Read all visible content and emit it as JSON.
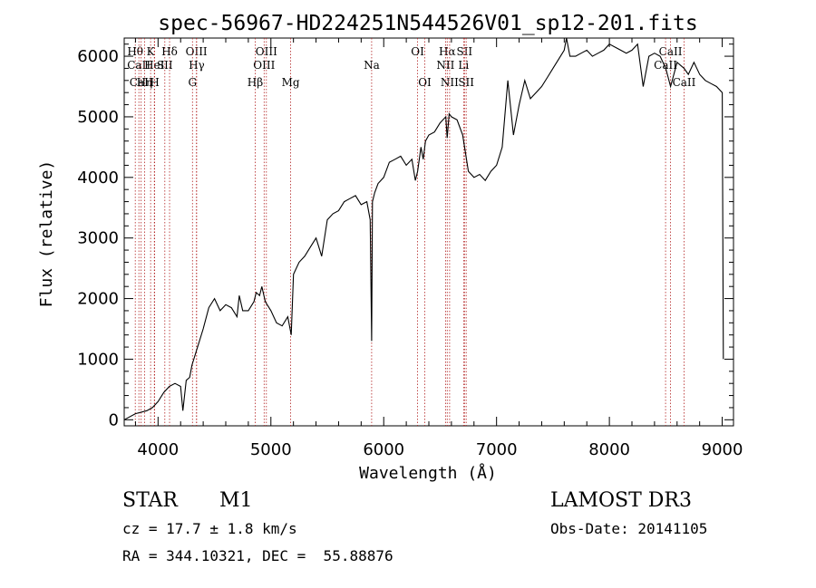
{
  "chart_data": {
    "type": "line",
    "title": "spec-56967-HD224251N544526V01_sp12-201.fits",
    "xlabel": "Wavelength (Å)",
    "ylabel": "Flux (relative)",
    "xlim": [
      3700,
      9100
    ],
    "ylim": [
      -100,
      6300
    ],
    "xticks": [
      4000,
      5000,
      6000,
      7000,
      8000,
      9000
    ],
    "yticks": [
      0,
      1000,
      2000,
      3000,
      4000,
      5000,
      6000
    ],
    "grid": false,
    "series": [
      {
        "x": [
          3700,
          3800,
          3900,
          3950,
          4000,
          4050,
          4100,
          4150,
          4200,
          4220,
          4250,
          4280,
          4300,
          4350,
          4400,
          4450,
          4500,
          4550,
          4600,
          4650,
          4700,
          4720,
          4750,
          4800,
          4850,
          4870,
          4900,
          4920,
          4950,
          5000,
          5050,
          5100,
          5150,
          5180,
          5200,
          5250,
          5300,
          5350,
          5400,
          5450,
          5500,
          5550,
          5600,
          5650,
          5700,
          5750,
          5800,
          5850,
          5880,
          5893,
          5900,
          5920,
          5950,
          6000,
          6050,
          6100,
          6150,
          6200,
          6250,
          6280,
          6300,
          6330,
          6350,
          6370,
          6400,
          6450,
          6500,
          6550,
          6562,
          6580,
          6600,
          6650,
          6700,
          6750,
          6800,
          6850,
          6900,
          6950,
          7000,
          7050,
          7100,
          7150,
          7200,
          7250,
          7300,
          7350,
          7400,
          7450,
          7500,
          7550,
          7600,
          7620,
          7650,
          7700,
          7750,
          7800,
          7850,
          7900,
          7950,
          8000,
          8050,
          8100,
          8150,
          8200,
          8250,
          8300,
          8350,
          8400,
          8450,
          8500,
          8542,
          8600,
          8662,
          8700,
          8750,
          8800,
          8850,
          8900,
          8950,
          9000,
          9010
        ],
        "y": [
          0,
          100,
          150,
          200,
          300,
          450,
          550,
          600,
          550,
          150,
          650,
          700,
          900,
          1200,
          1500,
          1850,
          2000,
          1800,
          1900,
          1850,
          1700,
          2050,
          1800,
          1800,
          1950,
          2100,
          2050,
          2200,
          1950,
          1800,
          1600,
          1550,
          1700,
          1400,
          2400,
          2600,
          2700,
          2850,
          3000,
          2700,
          3300,
          3400,
          3450,
          3600,
          3650,
          3700,
          3550,
          3600,
          3300,
          1300,
          3600,
          3750,
          3900,
          4000,
          4250,
          4300,
          4350,
          4200,
          4300,
          3950,
          4100,
          4500,
          4300,
          4600,
          4700,
          4750,
          4900,
          5000,
          4650,
          5050,
          5000,
          4950,
          4700,
          4100,
          4000,
          4050,
          3950,
          4100,
          4200,
          4500,
          5600,
          4700,
          5200,
          5600,
          5300,
          5400,
          5500,
          5650,
          5800,
          5950,
          6100,
          6300,
          6000,
          6000,
          6050,
          6100,
          6000,
          6050,
          6100,
          6200,
          6150,
          6100,
          6050,
          6100,
          6200,
          5500,
          6000,
          6050,
          6000,
          5800,
          5500,
          5900,
          5800,
          5700,
          5900,
          5700,
          5600,
          5550,
          5500,
          5400,
          1000
        ]
      }
    ],
    "spectral_lines": [
      {
        "label": "Hθ",
        "x": 3798,
        "row": 1
      },
      {
        "label": "CaII",
        "x": 3830,
        "row": 2
      },
      {
        "label": "CaII",
        "x": 3850,
        "row": 3
      },
      {
        "label": "Hη",
        "x": 3880,
        "row": 3
      },
      {
        "label": "K",
        "x": 3934,
        "row": 1
      },
      {
        "label": "HeI",
        "x": 3967,
        "row": 2
      },
      {
        "label": "H",
        "x": 3970,
        "row": 3
      },
      {
        "label": "SII",
        "x": 4060,
        "row": 2
      },
      {
        "label": "Hδ",
        "x": 4102,
        "row": 1
      },
      {
        "label": "OIII",
        "x": 4340,
        "row": 1
      },
      {
        "label": "Hγ",
        "x": 4342,
        "row": 2
      },
      {
        "label": "G",
        "x": 4305,
        "row": 3
      },
      {
        "label": "Hβ",
        "x": 4861,
        "row": 3
      },
      {
        "label": "OIII",
        "x": 4960,
        "row": 1
      },
      {
        "label": "OIII",
        "x": 4940,
        "row": 2
      },
      {
        "label": "Mg",
        "x": 5175,
        "row": 3
      },
      {
        "label": "Na",
        "x": 5893,
        "row": 2
      },
      {
        "label": "OI",
        "x": 6300,
        "row": 1
      },
      {
        "label": "OI",
        "x": 6364,
        "row": 3
      },
      {
        "label": "Hα",
        "x": 6563,
        "row": 1
      },
      {
        "label": "NII",
        "x": 6548,
        "row": 2
      },
      {
        "label": "NII",
        "x": 6584,
        "row": 3
      },
      {
        "label": "SII",
        "x": 6716,
        "row": 1
      },
      {
        "label": "Li",
        "x": 6708,
        "row": 2
      },
      {
        "label": "SII",
        "x": 6731,
        "row": 3
      },
      {
        "label": "CaII",
        "x": 8542,
        "row": 1
      },
      {
        "label": "CaII",
        "x": 8498,
        "row": 2
      },
      {
        "label": "CaII",
        "x": 8662,
        "row": 3
      }
    ]
  },
  "info": {
    "object_class": "STAR",
    "subclass": "M1",
    "survey": "LAMOST DR3",
    "cz": "cz = 17.7 ± 1.8 km/s",
    "obs_date": "Obs-Date: 20141105",
    "coords": "RA = 344.10321, DEC =  55.88876"
  }
}
